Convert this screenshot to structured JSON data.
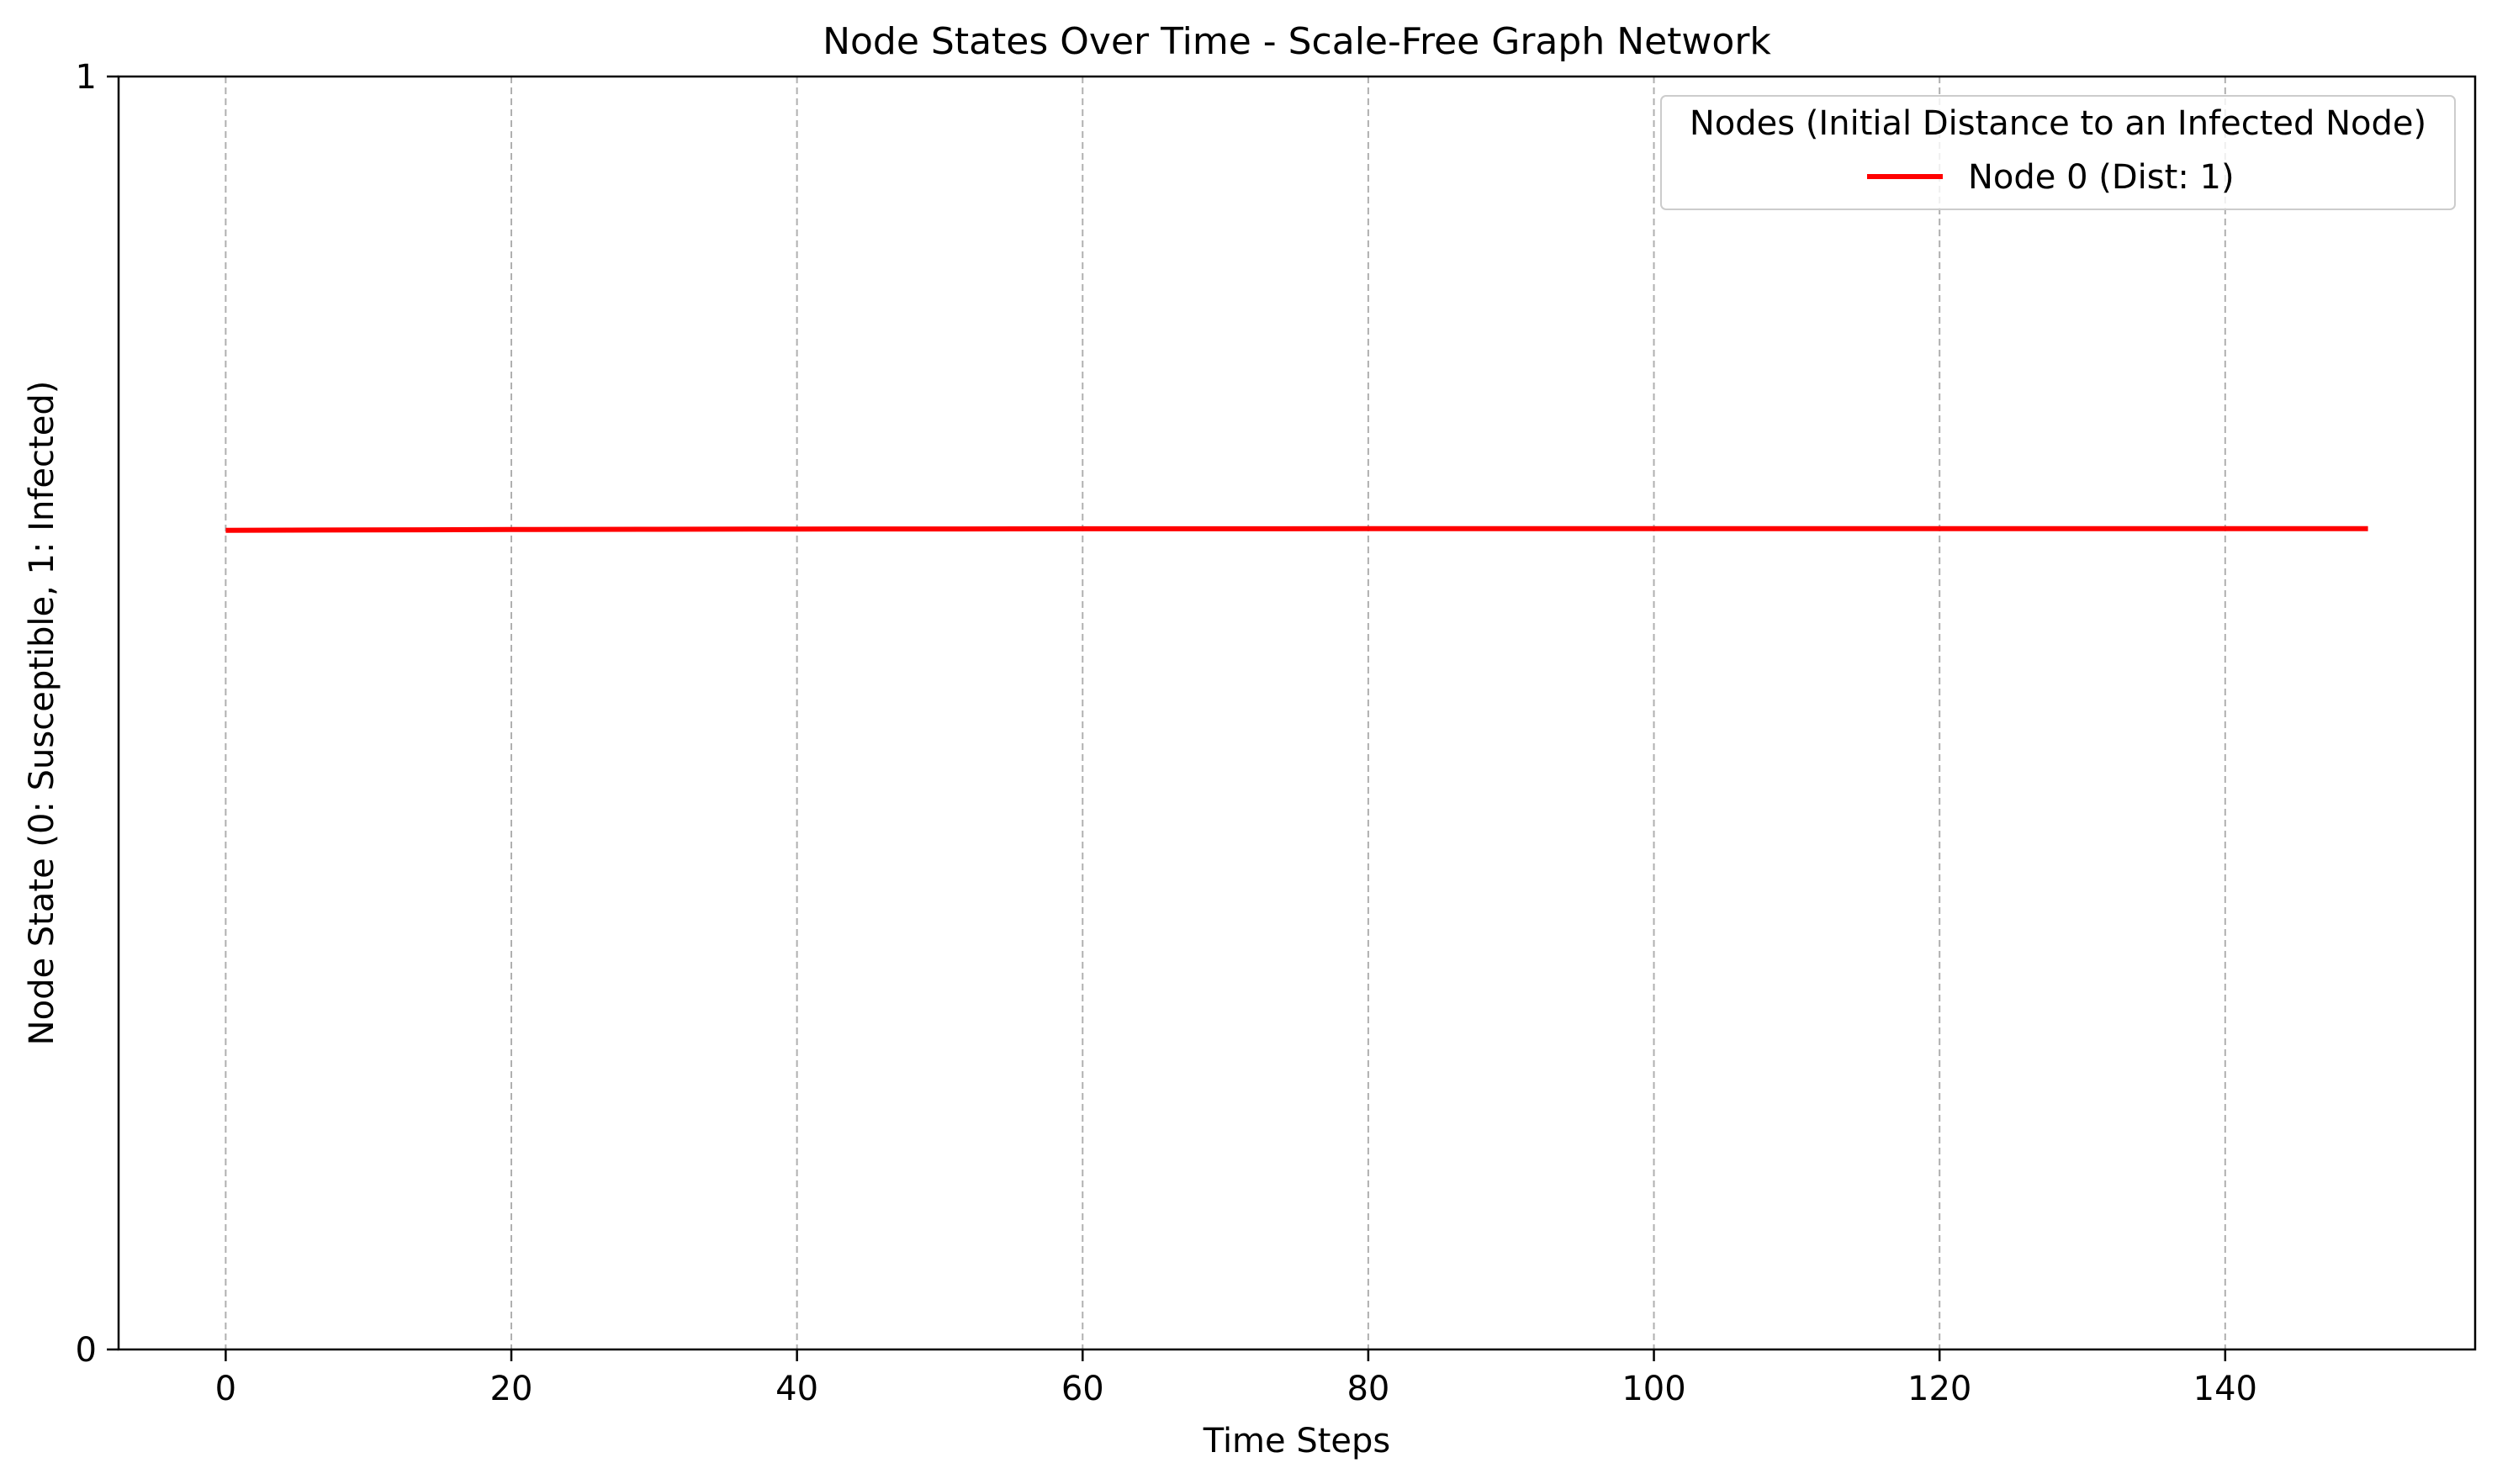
{
  "chart_data": {
    "type": "line",
    "title": "Node States Over Time - Scale-Free Graph Network",
    "xlabel": "Time Steps",
    "ylabel": "Node State (0: Susceptible, 1: Infected)",
    "xlim": [
      -7.5,
      157.5
    ],
    "ylim": [
      0,
      1
    ],
    "xticks": [
      0,
      20,
      40,
      60,
      80,
      100,
      120,
      140
    ],
    "yticks": [
      0,
      1
    ],
    "grid": "x-dashed",
    "legend": {
      "title": "Nodes (Initial Distance to an Infected Node)",
      "position": "top-right"
    },
    "series": [
      {
        "name": "Node 0 (Dist: 1)",
        "color": "#ff0000",
        "x": [
          0,
          10,
          20,
          30,
          40,
          50,
          60,
          70,
          80,
          90,
          100,
          110,
          120,
          130,
          140,
          150
        ],
        "y": [
          0.6435,
          0.6438,
          0.6441,
          0.6443,
          0.6445,
          0.6446,
          0.6447,
          0.6447,
          0.6448,
          0.6448,
          0.6448,
          0.6448,
          0.6448,
          0.6448,
          0.6448,
          0.6448
        ]
      }
    ]
  }
}
